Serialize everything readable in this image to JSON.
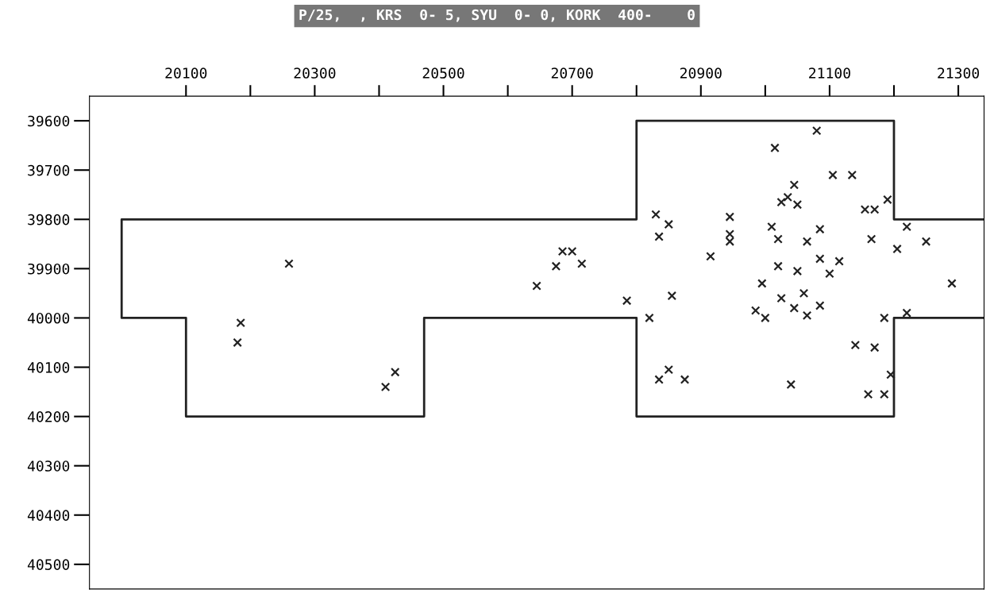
{
  "chart_data": {
    "type": "scatter",
    "title": "P/25,  , KRS  0- 5, SYU  0- 0, KORK  400-    0",
    "xlim": [
      19950,
      21340
    ],
    "ylim": [
      40550,
      39550
    ],
    "xticks": [
      20100,
      {
        "value": 20200,
        "label": null
      },
      20300,
      {
        "value": 20400,
        "label": null
      },
      20500,
      {
        "value": 20600,
        "label": null
      },
      20700,
      {
        "value": 20800,
        "label": null
      },
      20900,
      {
        "value": 21000,
        "label": null
      },
      21100,
      {
        "value": 21200,
        "label": null
      },
      21300
    ],
    "yticks": [
      39600,
      39700,
      39800,
      39900,
      40000,
      40100,
      40200,
      40300,
      40400,
      40500
    ],
    "grid": false,
    "legend": false,
    "series": [
      {
        "type": "line",
        "color": "#222222",
        "marker": "none",
        "line_style": "solid",
        "x": [
          21340,
          21200,
          21200,
          20800,
          20800,
          20000,
          20000,
          20100,
          20100,
          20470,
          20470,
          20800,
          20800,
          21200,
          21200,
          21340
        ],
        "values": [
          39800,
          39800,
          39600,
          39600,
          39800,
          39800,
          40000,
          40000,
          40200,
          40200,
          40000,
          40000,
          40200,
          40200,
          40000,
          40000
        ]
      },
      {
        "color": "#222222",
        "marker": "cross",
        "x": [
          20260,
          20185,
          20180,
          20425,
          20410,
          21015,
          21080,
          21105,
          21135,
          21045,
          21035,
          21050,
          21025,
          21190,
          21155,
          21170,
          20830,
          20850,
          20835,
          20945,
          20945,
          20945,
          21010,
          21020,
          21065,
          21085,
          21165,
          21220,
          21205,
          21250,
          20685,
          20700,
          20675,
          20715,
          20915,
          21085,
          21115,
          21100,
          21020,
          21050,
          20645,
          20995,
          21060,
          20855,
          21290,
          20785,
          21025,
          21085,
          20985,
          21000,
          21045,
          21065,
          20820,
          21185,
          21220,
          21140,
          21170,
          21195,
          20850,
          20835,
          20875,
          21040,
          21160,
          21185
        ],
        "values": [
          39890,
          40010,
          40050,
          40110,
          40140,
          39655,
          39620,
          39710,
          39710,
          39730,
          39755,
          39770,
          39765,
          39760,
          39780,
          39780,
          39790,
          39810,
          39835,
          39795,
          39830,
          39845,
          39815,
          39840,
          39845,
          39820,
          39840,
          39815,
          39860,
          39845,
          39865,
          39865,
          39895,
          39890,
          39875,
          39880,
          39885,
          39910,
          39895,
          39905,
          39935,
          39930,
          39950,
          39955,
          39930,
          39965,
          39960,
          39975,
          39985,
          40000,
          39980,
          39995,
          40000,
          40000,
          39990,
          40055,
          40060,
          40115,
          40105,
          40125,
          40125,
          40135,
          40155,
          40155
        ]
      }
    ]
  }
}
